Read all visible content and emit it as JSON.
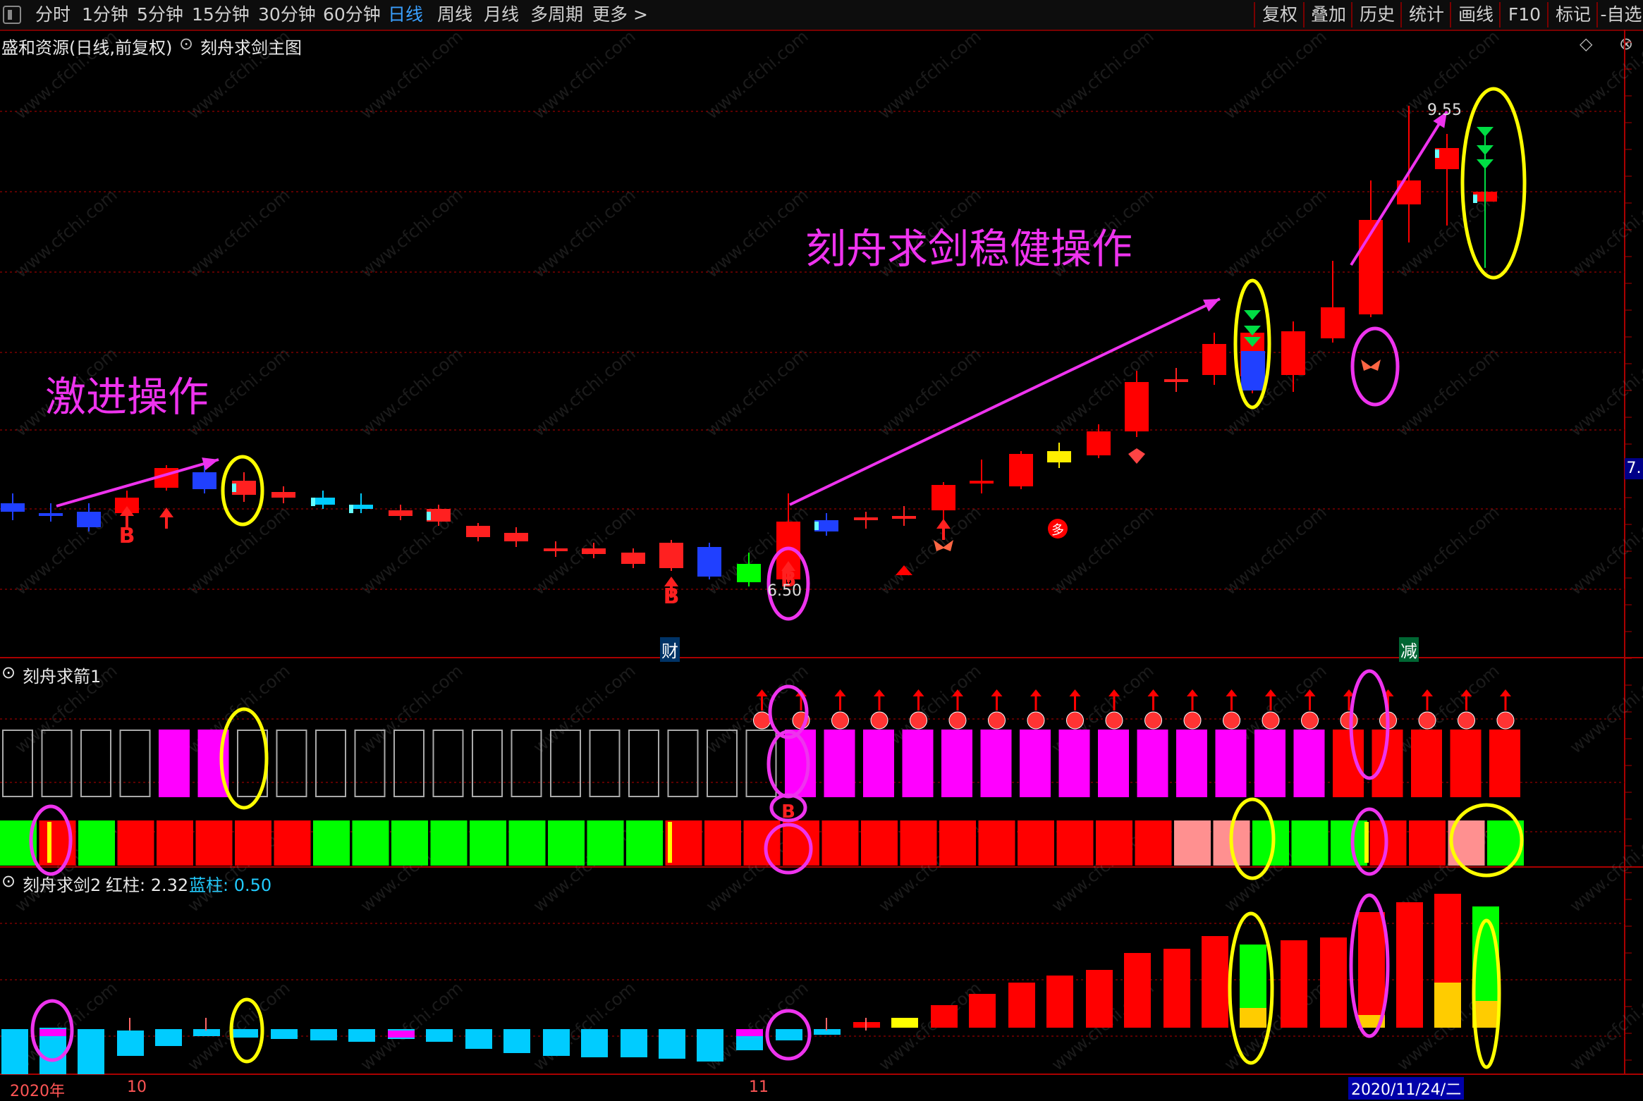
{
  "toolbar": {
    "tabs": [
      "分时",
      "1分钟",
      "5分钟",
      "15分钟",
      "30分钟",
      "60分钟",
      "日线",
      "周线",
      "月线",
      "多周期",
      "更多 >"
    ],
    "active_tab": "日线",
    "right_buttons": [
      "复权",
      "叠加",
      "历史",
      "统计",
      "画线",
      "F10",
      "标记",
      "-自选"
    ]
  },
  "main_panel": {
    "stock_title": "盛和资源(日线,前复权)",
    "indicator_name": "刻舟求剑主图",
    "annotation_aggressive": "激进操作",
    "annotation_steady": "刻舟求剑稳健操作",
    "high_price_label": "9.55",
    "low_price_label": "6.50",
    "right_price_tag": "7.",
    "event_marker_cai": "财",
    "event_marker_jian": "减",
    "buy_marker": "B",
    "multi_marker": "多"
  },
  "sub1": {
    "title": "刻舟求箭1"
  },
  "sub2": {
    "title": "刻舟求剑2",
    "red_label": "红柱: 2.32",
    "blue_label": "蓝柱: 0.50"
  },
  "xaxis": {
    "year_label": "2020年",
    "month_10": "10",
    "month_11": "11",
    "cursor_date": "2020/11/24/二"
  },
  "watermark": "www.cfchi.com",
  "colors": {
    "up": "#ff0000",
    "down": "#0000ff",
    "magenta": "#ff00ff",
    "cyan": "#00ccff",
    "green": "#00ff00",
    "yellow": "#ffff00",
    "grid": "#8b0000"
  }
}
